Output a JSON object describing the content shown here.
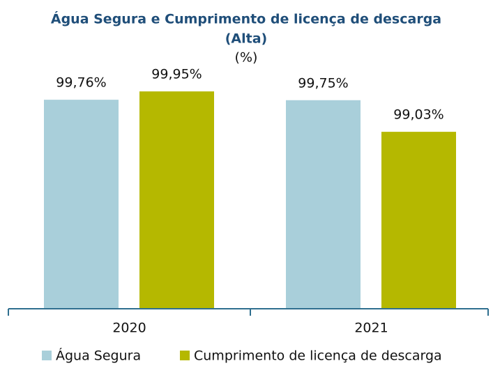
{
  "chart_data": {
    "type": "bar",
    "title": [
      "Água  Segura e Cumprimento de licença de descarga",
      "(Alta)"
    ],
    "subtitle": "(%)",
    "categories": [
      "2020",
      "2021"
    ],
    "series": [
      {
        "name": "Água Segura",
        "color": "#a9cfda",
        "values": [
          99.76,
          99.75
        ],
        "value_labels": [
          "99,76%",
          "99,75%"
        ]
      },
      {
        "name": "Cumprimento de licença de descarga",
        "color": "#b5b800",
        "values": [
          99.95,
          99.03
        ],
        "value_labels": [
          "99,95%",
          "99,03%"
        ]
      }
    ],
    "ylim": [
      95,
      100
    ]
  }
}
